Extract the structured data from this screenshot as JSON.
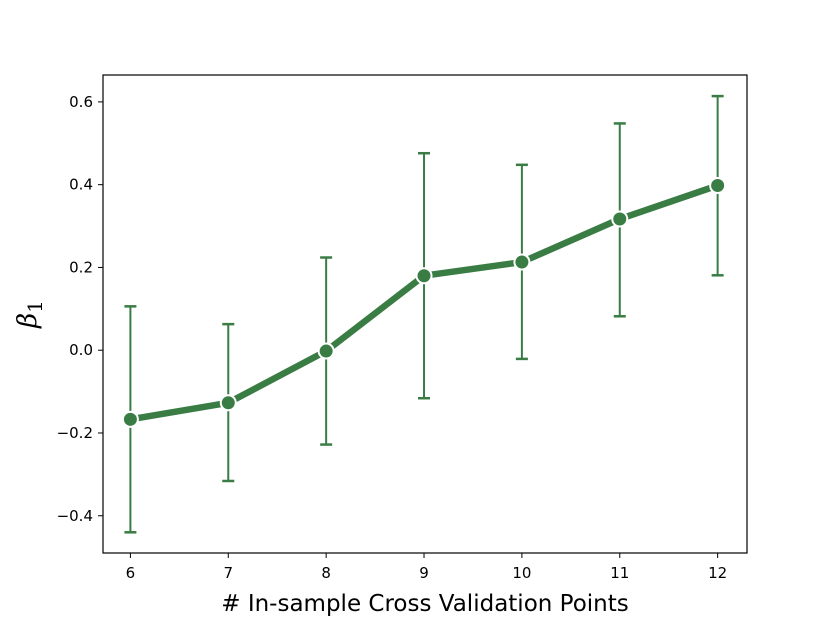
{
  "chart_data": {
    "type": "line",
    "title": "",
    "xlabel": "# In-sample Cross Validation Points",
    "ylabel": {
      "symbol": "β",
      "subscript": "1"
    },
    "x": [
      6,
      7,
      8,
      9,
      10,
      11,
      12
    ],
    "xticks": [
      "6",
      "7",
      "8",
      "9",
      "10",
      "11",
      "12"
    ],
    "xlim": [
      5.72,
      12.3
    ],
    "yticks": [
      -0.4,
      -0.2,
      0.0,
      0.2,
      0.4,
      0.6
    ],
    "ytick_labels": [
      "−0.4",
      "−0.2",
      "0.0",
      "0.2",
      "0.4",
      "0.6"
    ],
    "ylim": [
      -0.49,
      0.665
    ],
    "grid": false,
    "series": [
      {
        "values": [
          -0.167,
          -0.127,
          -0.002,
          0.18,
          0.213,
          0.317,
          0.398
        ],
        "error_lower": [
          -0.44,
          -0.316,
          -0.228,
          -0.116,
          -0.021,
          0.082,
          0.181
        ],
        "error_upper": [
          0.106,
          0.063,
          0.224,
          0.476,
          0.448,
          0.548,
          0.614
        ],
        "color": "#3a7d44",
        "marker": "circle",
        "marker_edge_color": "#ffffff"
      }
    ]
  }
}
